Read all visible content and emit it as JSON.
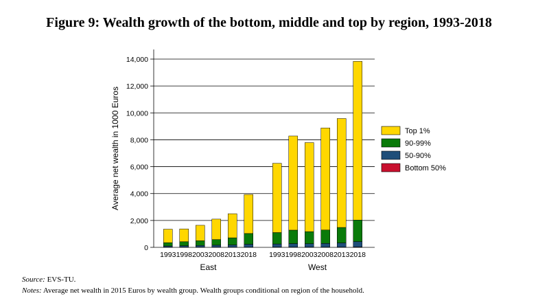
{
  "title": "Figure 9: Wealth growth of the bottom, middle and top by region, 1993-2018",
  "source_label": "Source:",
  "source_text": " EVS-TU.",
  "notes_label": "Notes:",
  "notes_text": " Average net wealth in 2015 Euros by wealth group. Wealth groups conditional on region of the household.",
  "colors": {
    "top1": "#ffd700",
    "p90_99": "#0a7a0a",
    "p50_90": "#1f4e79",
    "bottom50": "#c8102e"
  },
  "chart_data": {
    "type": "bar",
    "stacked": true,
    "ylabel": "Average net wealth in 1000 Euros",
    "ylim": [
      0,
      14000
    ],
    "yticks": [
      0,
      2000,
      4000,
      6000,
      8000,
      10000,
      12000,
      14000
    ],
    "ytick_labels": [
      "0",
      "2,000",
      "4,000",
      "6,000",
      "8,000",
      "10,000",
      "12,000",
      "14,000"
    ],
    "grid": true,
    "legend": "right",
    "groups": [
      {
        "name": "East",
        "categories": [
          "1993",
          "1998",
          "2003",
          "2008",
          "2013",
          "2018"
        ],
        "series": [
          {
            "name": "Bottom 50%",
            "values": [
              10,
              10,
              10,
              10,
              10,
              10
            ]
          },
          {
            "name": "50-90%",
            "values": [
              90,
              110,
              130,
              150,
              170,
              220
            ]
          },
          {
            "name": "90-99%",
            "values": [
              250,
              300,
              350,
              420,
              530,
              800
            ]
          },
          {
            "name": "Top 1%",
            "values": [
              1000,
              950,
              1150,
              1520,
              1790,
              2900
            ]
          }
        ]
      },
      {
        "name": "West",
        "categories": [
          "1993",
          "1998",
          "2003",
          "2008",
          "2013",
          "2018"
        ],
        "series": [
          {
            "name": "Bottom 50%",
            "values": [
              20,
              20,
              20,
              20,
              20,
              30
            ]
          },
          {
            "name": "50-90%",
            "values": [
              230,
              260,
              250,
              270,
              310,
              400
            ]
          },
          {
            "name": "90-99%",
            "values": [
              850,
              1000,
              900,
              1000,
              1150,
              1600
            ]
          },
          {
            "name": "Top 1%",
            "values": [
              5150,
              7000,
              6620,
              7590,
              8100,
              11800
            ]
          }
        ]
      }
    ]
  }
}
